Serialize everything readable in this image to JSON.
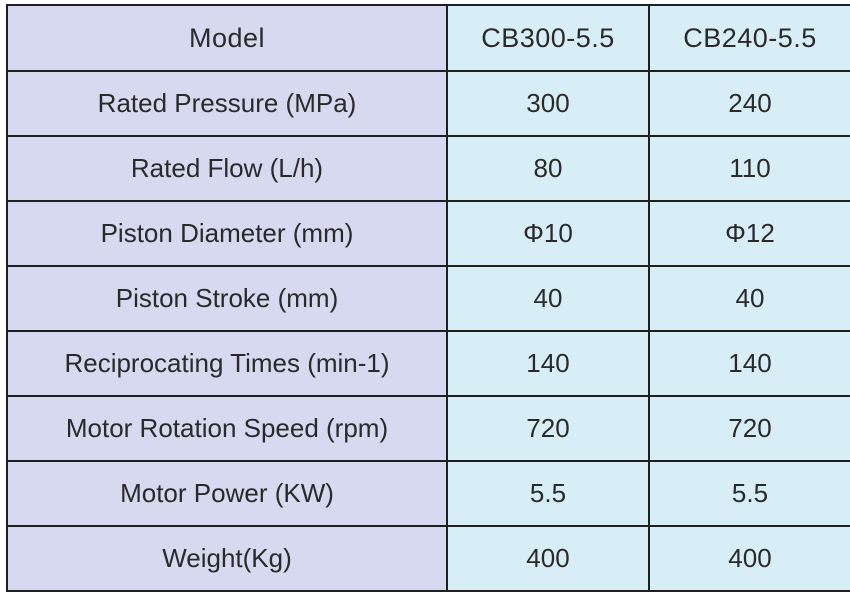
{
  "table": {
    "header": {
      "label": "Model",
      "models": [
        "CB300-5.5",
        "CB240-5.5"
      ]
    },
    "rows": [
      {
        "label": "Rated Pressure (MPa)",
        "values": [
          "300",
          "240"
        ]
      },
      {
        "label": "Rated Flow (L/h)",
        "values": [
          "80",
          "110"
        ]
      },
      {
        "label": "Piston Diameter (mm)",
        "values": [
          "Φ10",
          "Φ12"
        ]
      },
      {
        "label": "Piston Stroke (mm)",
        "values": [
          "40",
          "40"
        ]
      },
      {
        "label": "Reciprocating Times (min-1)",
        "values": [
          "140",
          "140"
        ]
      },
      {
        "label": "Motor Rotation Speed (rpm)",
        "values": [
          "720",
          "720"
        ]
      },
      {
        "label": "Motor Power (KW)",
        "values": [
          "5.5",
          "5.5"
        ]
      },
      {
        "label": "Weight(Kg)",
        "values": [
          "400",
          "400"
        ]
      }
    ]
  },
  "colors": {
    "label_background": "#d6d9ef",
    "value_background": "#d8eef7",
    "border": "#1f1f1f",
    "text": "#2a2a2a"
  }
}
